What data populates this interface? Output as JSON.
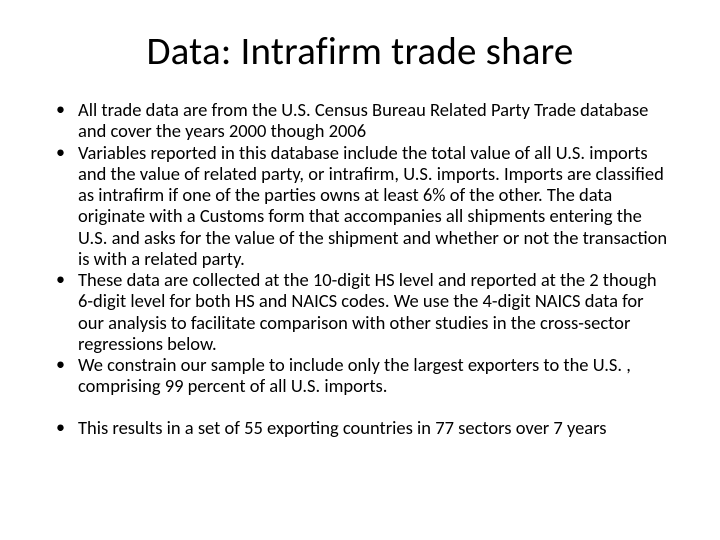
{
  "slide": {
    "title": "Data:  Intrafirm trade share",
    "title_fontsize": 39,
    "title_color": "#000000",
    "background_color": "#ffffff",
    "bullet_fontsize": 18.5,
    "bullet_color": "#000000",
    "bullets": [
      "All trade data are from the U.S. Census Bureau Related Party Trade database and cover the years 2000 though 2006",
      " Variables reported in this database include the total value of all U.S. imports and the value of related party, or intrafirm, U.S. imports.  Imports are classified as intrafirm if one of the parties owns at least 6% of the other.  The data originate with a Customs form that accompanies all shipments entering the U.S. and asks for the value of the shipment and whether or not the transaction is with a related party.",
      "These data are collected at the 10-digit HS level and reported at the 2 though 6-digit level for both HS and NAICS codes.  We use the 4-digit NAICS data for our analysis to facilitate comparison with other studies in the cross-sector regressions below.",
      "We constrain our sample to include only the largest exporters to the U.S. , comprising 99 percent of all U.S. imports.",
      "This results in a set of 55 exporting countries in 77 sectors over 7 years"
    ]
  }
}
